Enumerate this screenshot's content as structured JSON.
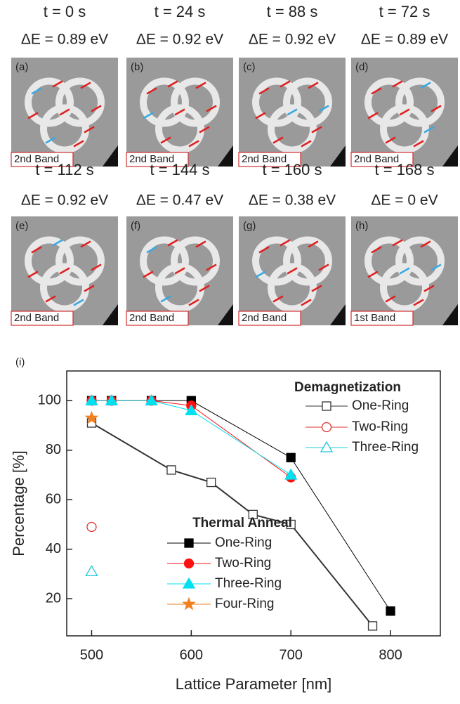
{
  "panels": [
    {
      "time": "t = 0 s",
      "energy": "ΔE = 0.89 eV",
      "label": "(a)",
      "band": "2nd Band"
    },
    {
      "time": "t = 24 s",
      "energy": "ΔE = 0.92 eV",
      "label": "(b)",
      "band": "2nd Band"
    },
    {
      "time": "t = 88 s",
      "energy": "ΔE = 0.92 eV",
      "label": "(c)",
      "band": "2nd Band"
    },
    {
      "time": "t = 72 s",
      "energy": "ΔE = 0.89 eV",
      "label": "(d)",
      "band": "2nd Band"
    },
    {
      "time": "t = 112 s",
      "energy": "ΔE = 0.92 eV",
      "label": "(e)",
      "band": "2nd Band"
    },
    {
      "time": "t = 144 s",
      "energy": "ΔE = 0.47 eV",
      "label": "(f)",
      "band": "2nd Band"
    },
    {
      "time": "t = 160 s",
      "energy": "ΔE = 0.38 eV",
      "label": "(g)",
      "band": "2nd Band"
    },
    {
      "time": "t = 168 s",
      "energy": "ΔE = 0 eV",
      "label": "(h)",
      "band": "1st Band"
    }
  ],
  "chart_data": {
    "type": "line",
    "panel_label": "(i)",
    "x_label": "Lattice Parameter [nm]",
    "y_label": "Percentage [%]",
    "xlim": [
      475,
      850
    ],
    "ylim": [
      5,
      112
    ],
    "xticks": [
      500,
      600,
      700,
      800
    ],
    "yticks": [
      20,
      40,
      60,
      80,
      100
    ],
    "legends": [
      {
        "title": "Demagnetization",
        "series": [
          {
            "name": "One-Ring",
            "color": "#333333",
            "marker": "square",
            "filled": false,
            "x": [
              500,
              580,
              620,
              662,
              700,
              782
            ],
            "values": [
              91,
              72,
              67,
              54,
              50,
              9
            ]
          },
          {
            "name": "Two-Ring",
            "color": "#e03030",
            "marker": "circle",
            "filled": false,
            "x": [
              500
            ],
            "values": [
              49
            ]
          },
          {
            "name": "Three-Ring",
            "color": "#20c8d8",
            "marker": "triangle",
            "filled": false,
            "x": [
              500
            ],
            "values": [
              31
            ]
          }
        ]
      },
      {
        "title": "Thermal Anneal",
        "series": [
          {
            "name": "One-Ring",
            "color": "#000000",
            "marker": "square",
            "filled": true,
            "x": [
              500,
              520,
              560,
              600,
              700,
              800
            ],
            "values": [
              100,
              100,
              100,
              100,
              77,
              15
            ]
          },
          {
            "name": "Two-Ring",
            "color": "#ff1010",
            "marker": "circle",
            "filled": true,
            "x": [
              500,
              520,
              560,
              600,
              700
            ],
            "values": [
              100,
              100,
              100,
              98,
              69
            ]
          },
          {
            "name": "Three-Ring",
            "color": "#00e0f0",
            "marker": "triangle",
            "filled": true,
            "x": [
              500,
              520,
              560,
              600,
              700
            ],
            "values": [
              100,
              100,
              100,
              96,
              70
            ]
          },
          {
            "name": "Four-Ring",
            "color": "#f08020",
            "marker": "star",
            "filled": true,
            "x": [
              500
            ],
            "values": [
              93
            ]
          }
        ]
      }
    ]
  }
}
